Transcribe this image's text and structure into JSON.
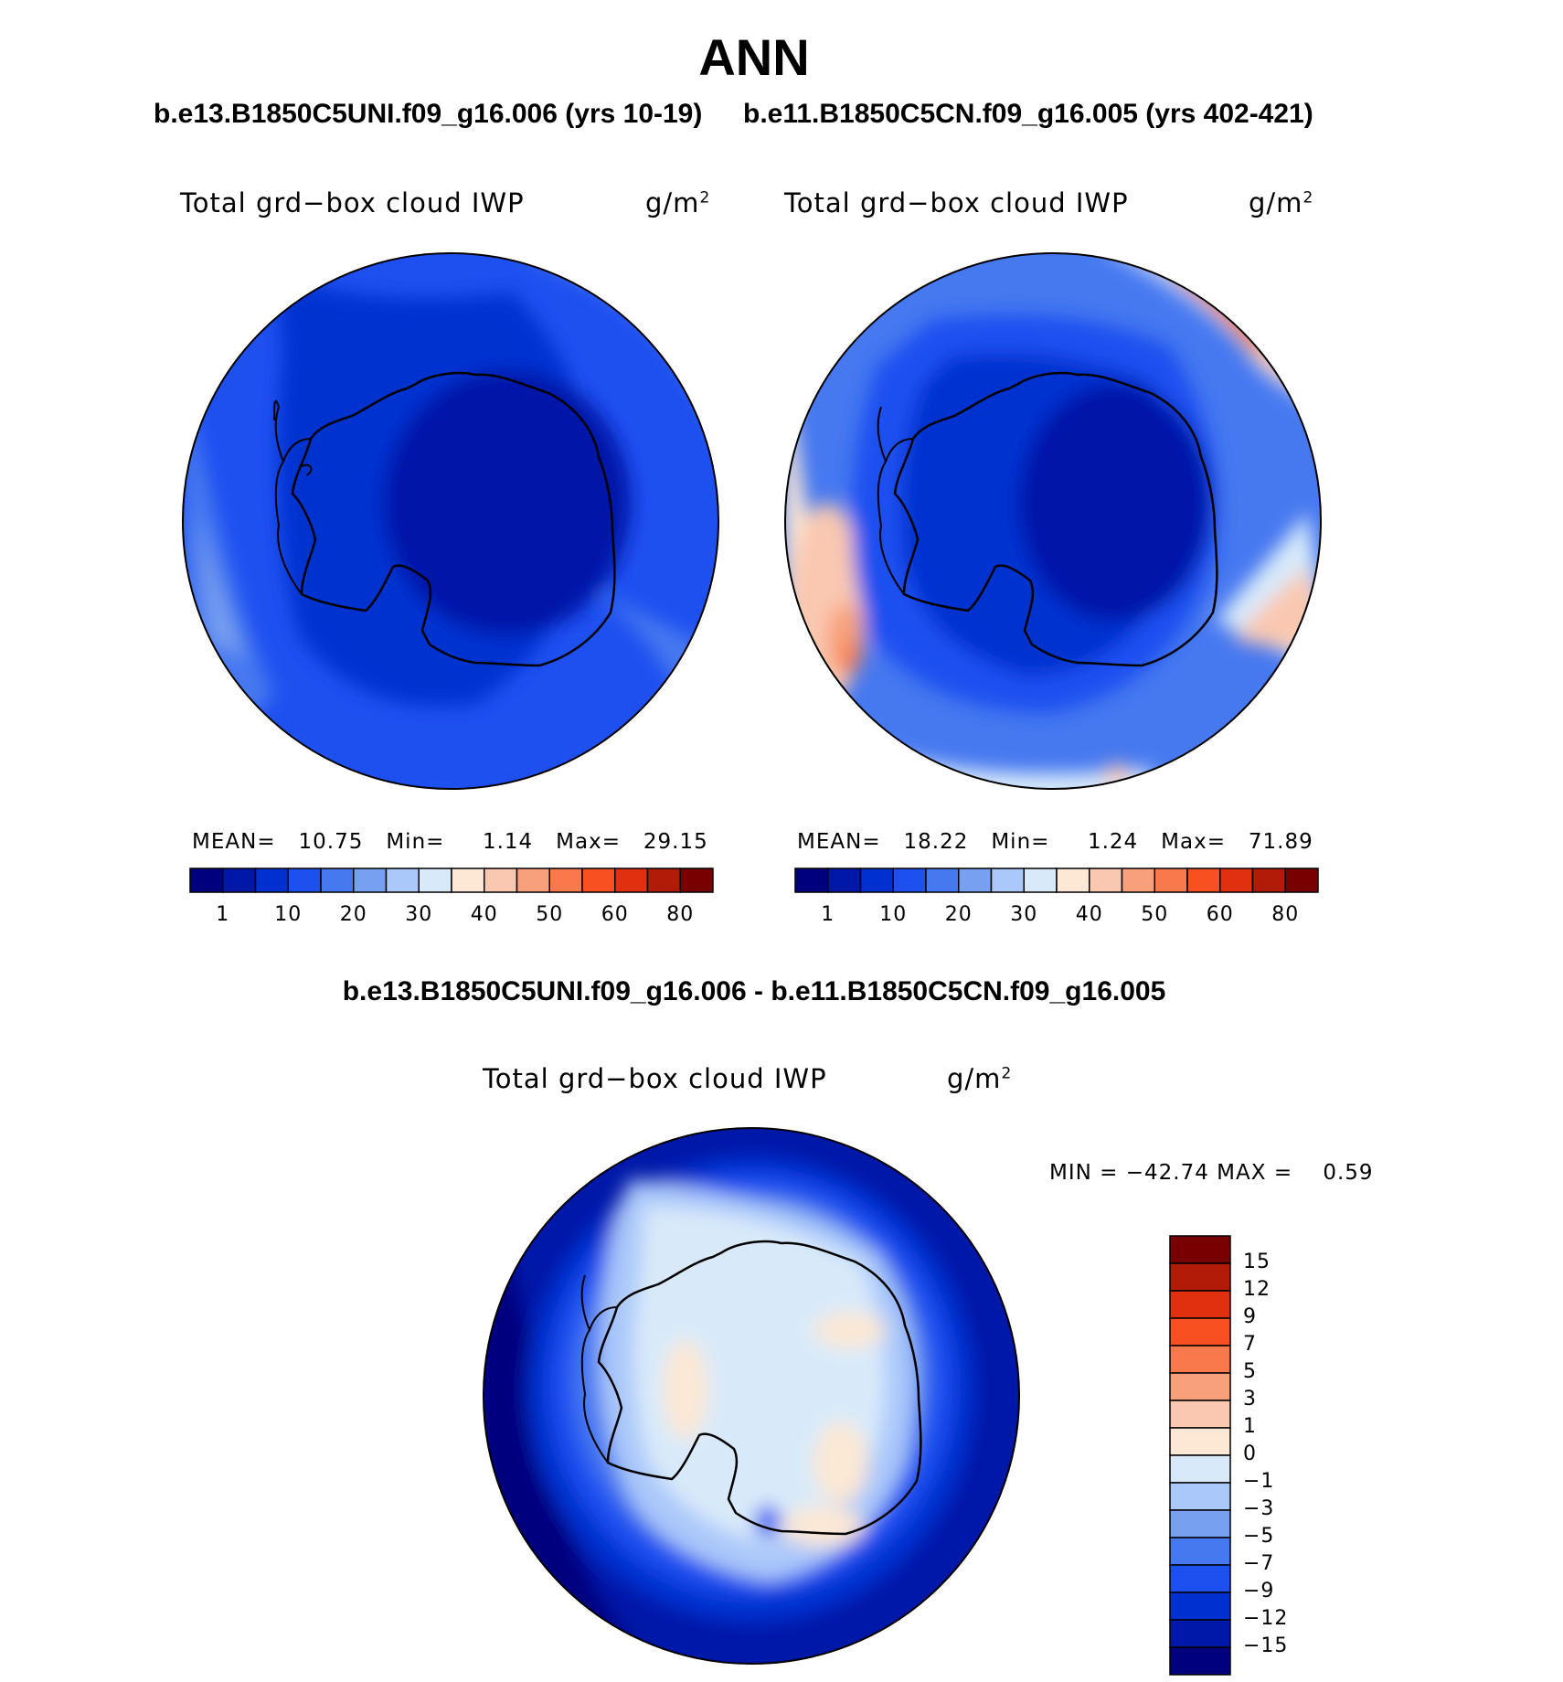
{
  "title": "ANN",
  "panels": {
    "left": {
      "case_title": "b.e13.B1850C5UNI.f09_g16.006 (yrs 10-19)",
      "variable": "Total grd−box cloud IWP",
      "units": "g/m",
      "units_exp": "2",
      "stats": {
        "mean_label": "MEAN=",
        "mean": "10.75",
        "min_label": "Min=",
        "min": "1.14",
        "max_label": "Max=",
        "max": "29.15"
      }
    },
    "right": {
      "case_title": "b.e11.B1850C5CN.f09_g16.005 (yrs 402-421)",
      "variable": "Total grd−box cloud IWP",
      "units": "g/m",
      "units_exp": "2",
      "stats": {
        "mean_label": "MEAN=",
        "mean": "18.22",
        "min_label": "Min=",
        "min": "1.24",
        "max_label": "Max=",
        "max": "71.89"
      }
    },
    "diff": {
      "case_title": "b.e13.B1850C5UNI.f09_g16.006 - b.e11.B1850C5CN.f09_g16.005",
      "variable": "Total grd−box cloud IWP",
      "units": "g/m",
      "units_exp": "2",
      "stats": {
        "min_label": "MIN =",
        "min": "−42.74",
        "max_label": "MAX =",
        "max": "0.59"
      }
    }
  },
  "colorbar_top": {
    "labels": [
      "1",
      "10",
      "20",
      "30",
      "40",
      "50",
      "60",
      "80"
    ],
    "colors": [
      "#00007f",
      "#0018a8",
      "#0030d0",
      "#1e50f0",
      "#4678f0",
      "#78a0f0",
      "#aac8fa",
      "#d8eafa",
      "#fce8d4",
      "#fac8b0",
      "#f8a07c",
      "#f87a4c",
      "#f85020",
      "#e03010",
      "#b01c08",
      "#780000"
    ]
  },
  "colorbar_diff": {
    "labels": [
      "15",
      "12",
      "9",
      "7",
      "5",
      "3",
      "1",
      "0",
      "−1",
      "−3",
      "−5",
      "−7",
      "−9",
      "−12",
      "−15"
    ],
    "colors": [
      "#780000",
      "#b01c08",
      "#e03010",
      "#f85020",
      "#f87a4c",
      "#f8a07c",
      "#fac8b0",
      "#fce8d4",
      "#d8eafa",
      "#aac8fa",
      "#78a0f0",
      "#4678f0",
      "#1e50f0",
      "#0030d0",
      "#0018a8",
      "#00007f"
    ]
  },
  "map_colors": {
    "dark": "#0018a8",
    "mid_dark": "#0030d0",
    "mid": "#1e50f0",
    "light": "#4678f0",
    "lighter": "#78a0f0",
    "pale": "#aac8fa",
    "palest": "#d8eafa",
    "warm1": "#fce8d4",
    "warm2": "#fac8b0",
    "warm3": "#f8a07c",
    "warm4": "#f87a4c",
    "warm5": "#f85020",
    "warm6": "#e03010",
    "navy": "#00007f"
  }
}
